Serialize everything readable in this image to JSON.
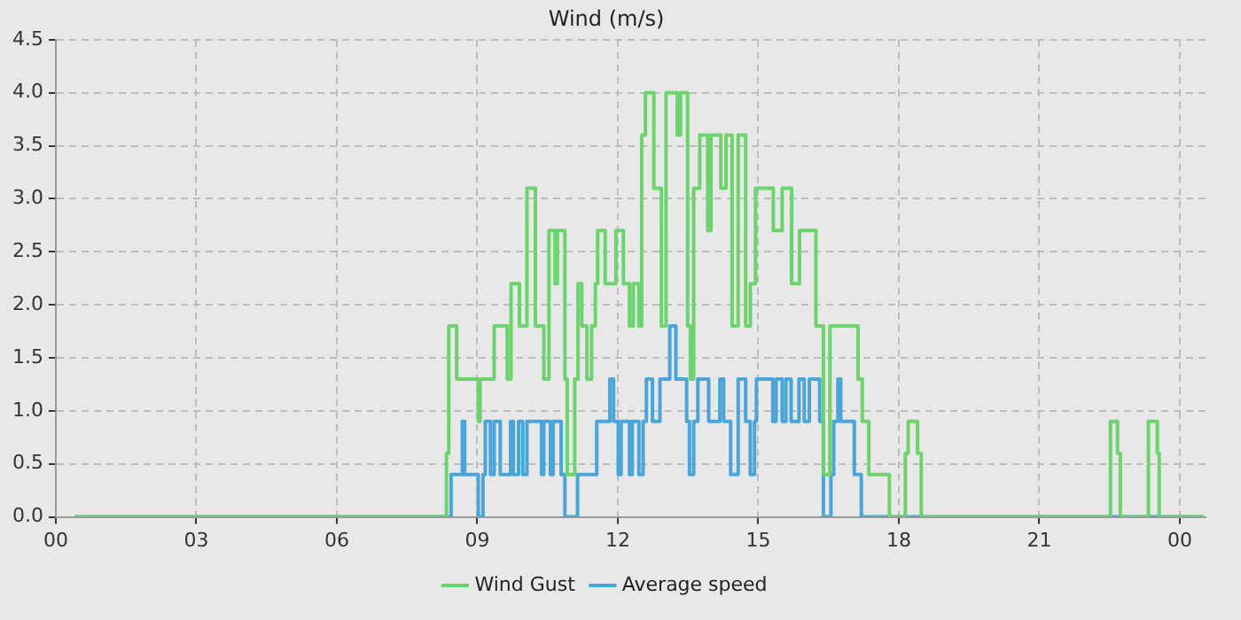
{
  "chart_data": {
    "type": "step",
    "title": "Wind (m/s)",
    "xlim": [
      0,
      24.55
    ],
    "xticks": [
      {
        "value": 0,
        "label": "00"
      },
      {
        "value": 3,
        "label": "03"
      },
      {
        "value": 6,
        "label": "06"
      },
      {
        "value": 9,
        "label": "09"
      },
      {
        "value": 12,
        "label": "12"
      },
      {
        "value": 15,
        "label": "15"
      },
      {
        "value": 18,
        "label": "18"
      },
      {
        "value": 21,
        "label": "21"
      },
      {
        "value": 24,
        "label": "00"
      }
    ],
    "ylim": [
      0,
      4.5
    ],
    "yticks": [
      {
        "value": 0,
        "label": "0.0"
      },
      {
        "value": 0.5,
        "label": "0.5"
      },
      {
        "value": 1,
        "label": "1.0"
      },
      {
        "value": 1.5,
        "label": "1.5"
      },
      {
        "value": 2,
        "label": "2.0"
      },
      {
        "value": 2.5,
        "label": "2.5"
      },
      {
        "value": 3,
        "label": "3.0"
      },
      {
        "value": 3.5,
        "label": "3.5"
      },
      {
        "value": 4,
        "label": "4.0"
      },
      {
        "value": 4.5,
        "label": "4.5"
      }
    ],
    "grid": true,
    "legend": "bottom",
    "marker": "none",
    "line_style": "solid",
    "series": [
      {
        "name": "Wind Gust",
        "color": "#6dd46d",
        "x": [
          0.4,
          8.34,
          8.39,
          8.56,
          9.02,
          9.06,
          9.36,
          9.64,
          9.72,
          9.9,
          10.06,
          10.24,
          10.42,
          10.53,
          10.66,
          10.71,
          10.87,
          10.92,
          11.08,
          11.15,
          11.23,
          11.34,
          11.44,
          11.52,
          11.57,
          11.73,
          11.96,
          12.12,
          12.25,
          12.33,
          12.45,
          12.51,
          12.59,
          12.77,
          12.93,
          13.03,
          13.27,
          13.34,
          13.49,
          13.55,
          13.62,
          13.75,
          13.92,
          13.99,
          14.2,
          14.31,
          14.44,
          14.57,
          14.73,
          14.83,
          14.94,
          15.32,
          15.51,
          15.71,
          15.88,
          16.23,
          16.39,
          16.53,
          17.13,
          17.22,
          17.36,
          17.8,
          18.14,
          18.2,
          18.4,
          18.48,
          22.52,
          22.67,
          22.73,
          23.33,
          23.52,
          23.56,
          24.5
        ],
        "values": [
          0,
          0.6,
          1.8,
          1.3,
          0.9,
          1.3,
          1.8,
          1.3,
          2.2,
          1.8,
          3.1,
          1.8,
          1.3,
          2.7,
          2.2,
          2.7,
          1.3,
          0.4,
          1.3,
          2.2,
          1.8,
          1.3,
          1.8,
          2.2,
          2.7,
          2.2,
          2.7,
          2.2,
          1.8,
          2.2,
          1.8,
          3.6,
          4.0,
          3.1,
          1.8,
          4.0,
          3.6,
          4.0,
          1.8,
          1.3,
          3.1,
          3.6,
          2.7,
          3.6,
          3.1,
          3.6,
          1.8,
          3.6,
          1.8,
          2.2,
          3.1,
          2.7,
          3.1,
          2.2,
          2.7,
          1.8,
          0.4,
          1.8,
          1.3,
          0.9,
          0.4,
          0,
          0.6,
          0.9,
          0.6,
          0,
          0.9,
          0.6,
          0,
          0.9,
          0.6,
          0,
          0
        ]
      },
      {
        "name": "Average speed",
        "color": "#4aa5d8",
        "x": [
          0.4,
          8.44,
          8.68,
          8.73,
          9.02,
          9.12,
          9.17,
          9.28,
          9.36,
          9.49,
          9.71,
          9.77,
          9.88,
          9.97,
          10.06,
          10.37,
          10.42,
          10.56,
          10.62,
          10.79,
          10.87,
          11.14,
          11.55,
          11.83,
          11.91,
          12.01,
          12.07,
          12.25,
          12.31,
          12.45,
          12.54,
          12.61,
          12.74,
          12.9,
          13.11,
          13.24,
          13.47,
          13.53,
          13.62,
          13.71,
          13.94,
          14.18,
          14.26,
          14.41,
          14.57,
          14.73,
          14.83,
          14.92,
          14.96,
          15.31,
          15.38,
          15.51,
          15.59,
          15.7,
          15.87,
          15.98,
          16.09,
          16.31,
          16.39,
          16.55,
          16.61,
          16.7,
          16.76,
          17.05,
          17.2,
          24.5
        ],
        "values": [
          0,
          0.4,
          0.9,
          0.4,
          0,
          0.4,
          0.9,
          0.4,
          0.9,
          0.4,
          0.9,
          0.4,
          0.9,
          0.4,
          0.9,
          0.4,
          0.9,
          0.4,
          0.9,
          0.4,
          0,
          0.4,
          0.9,
          1.3,
          0.9,
          0.4,
          0.9,
          0.4,
          0.9,
          0.4,
          0.9,
          1.3,
          0.9,
          1.3,
          1.8,
          1.3,
          0.9,
          0.4,
          0.9,
          1.3,
          0.9,
          1.3,
          0.9,
          0.4,
          1.3,
          0.9,
          0.4,
          0.9,
          1.3,
          0.9,
          1.3,
          0.9,
          1.3,
          0.9,
          1.3,
          0.9,
          1.3,
          0.9,
          0,
          0.4,
          0.9,
          1.3,
          0.9,
          0.4,
          0,
          0
        ]
      }
    ]
  }
}
